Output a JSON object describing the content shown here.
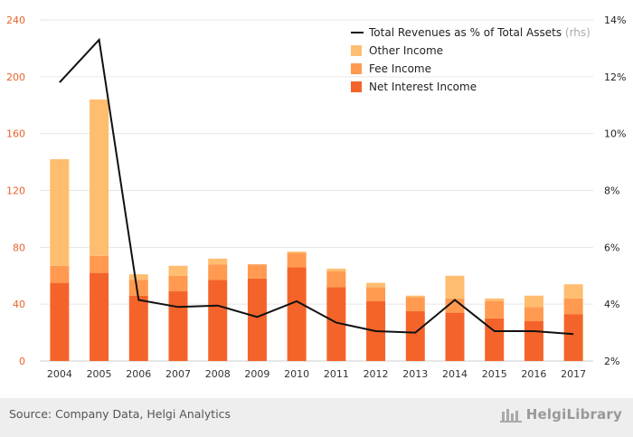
{
  "chart_data": {
    "type": "bar",
    "categories": [
      "2004",
      "2005",
      "2006",
      "2007",
      "2008",
      "2009",
      "2010",
      "2011",
      "2012",
      "2013",
      "2014",
      "2015",
      "2016",
      "2017"
    ],
    "series": [
      {
        "name": "Net Interest Income",
        "kind": "bar",
        "color": "#f4642a",
        "values": [
          55,
          62,
          46,
          49,
          57,
          58,
          66,
          52,
          42,
          35,
          34,
          30,
          28,
          33
        ]
      },
      {
        "name": "Fee Income",
        "kind": "bar",
        "color": "#ff9a50",
        "values": [
          12,
          12,
          11,
          11,
          11,
          10,
          10,
          11,
          10,
          10,
          10,
          12,
          10,
          11
        ]
      },
      {
        "name": "Other Income",
        "kind": "bar",
        "color": "#ffbd70",
        "values": [
          75,
          110,
          4,
          7,
          4,
          0,
          1,
          2,
          3,
          1,
          16,
          2,
          8,
          10
        ]
      },
      {
        "name": "Total Revenues as % of Total Assets",
        "legend_suffix": "(rhs)",
        "kind": "line",
        "axis": "right",
        "color": "#111111",
        "values": [
          11.8,
          13.3,
          4.15,
          3.9,
          3.95,
          3.55,
          4.1,
          3.35,
          3.05,
          3.0,
          4.15,
          3.05,
          3.05,
          2.95
        ]
      }
    ],
    "yleft": {
      "ylim": [
        0,
        240
      ],
      "ticks": [
        "0",
        "40",
        "80",
        "120",
        "160",
        "200",
        "240"
      ],
      "tick_color": "#e8632b"
    },
    "yright": {
      "ylim": [
        2,
        14
      ],
      "ticks": [
        "2%",
        "4%",
        "6%",
        "8%",
        "10%",
        "12%",
        "14%"
      ]
    },
    "grid": true,
    "legend_placement": "top-right",
    "title": "",
    "xlabel": "",
    "ylabel": ""
  },
  "footer": {
    "source": "Source: Company Data, Helgi Analytics",
    "brand": "HelgiLibrary"
  }
}
